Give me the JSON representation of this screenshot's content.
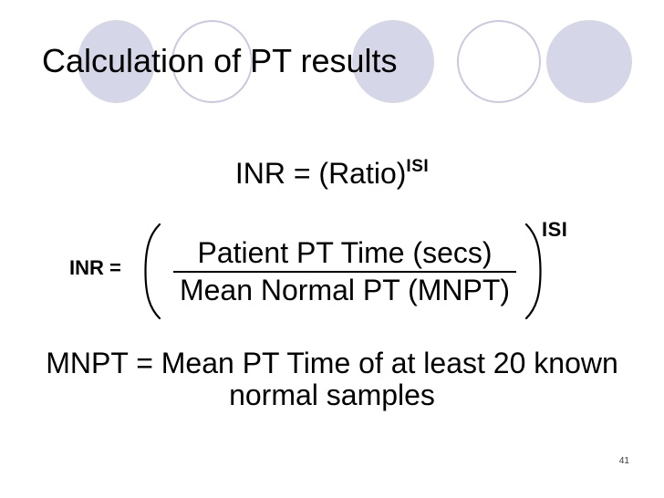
{
  "slide": {
    "title": "Calculation of PT results",
    "formula_inr_ratio": {
      "base": "INR = (Ratio)",
      "exponent": "ISI"
    },
    "formula_fraction": {
      "label": "INR =",
      "numerator": "Patient PT Time (secs)",
      "denominator": "Mean Normal PT (MNPT)",
      "exponent": "ISI"
    },
    "note": {
      "line1": "MNPT = Mean PT Time of at least 20 known",
      "line2": "normal samples"
    },
    "page_number": "41",
    "colors": {
      "background": "#FFFFFF",
      "text": "#000000",
      "circle_fill": "#D6D6E9",
      "circle_outline": "#C9C9E0",
      "page_number": "#3A3A3A"
    },
    "decorations": {
      "circle_styles": [
        "filled",
        "outlined",
        "filled",
        "outlined",
        "filled"
      ]
    }
  }
}
